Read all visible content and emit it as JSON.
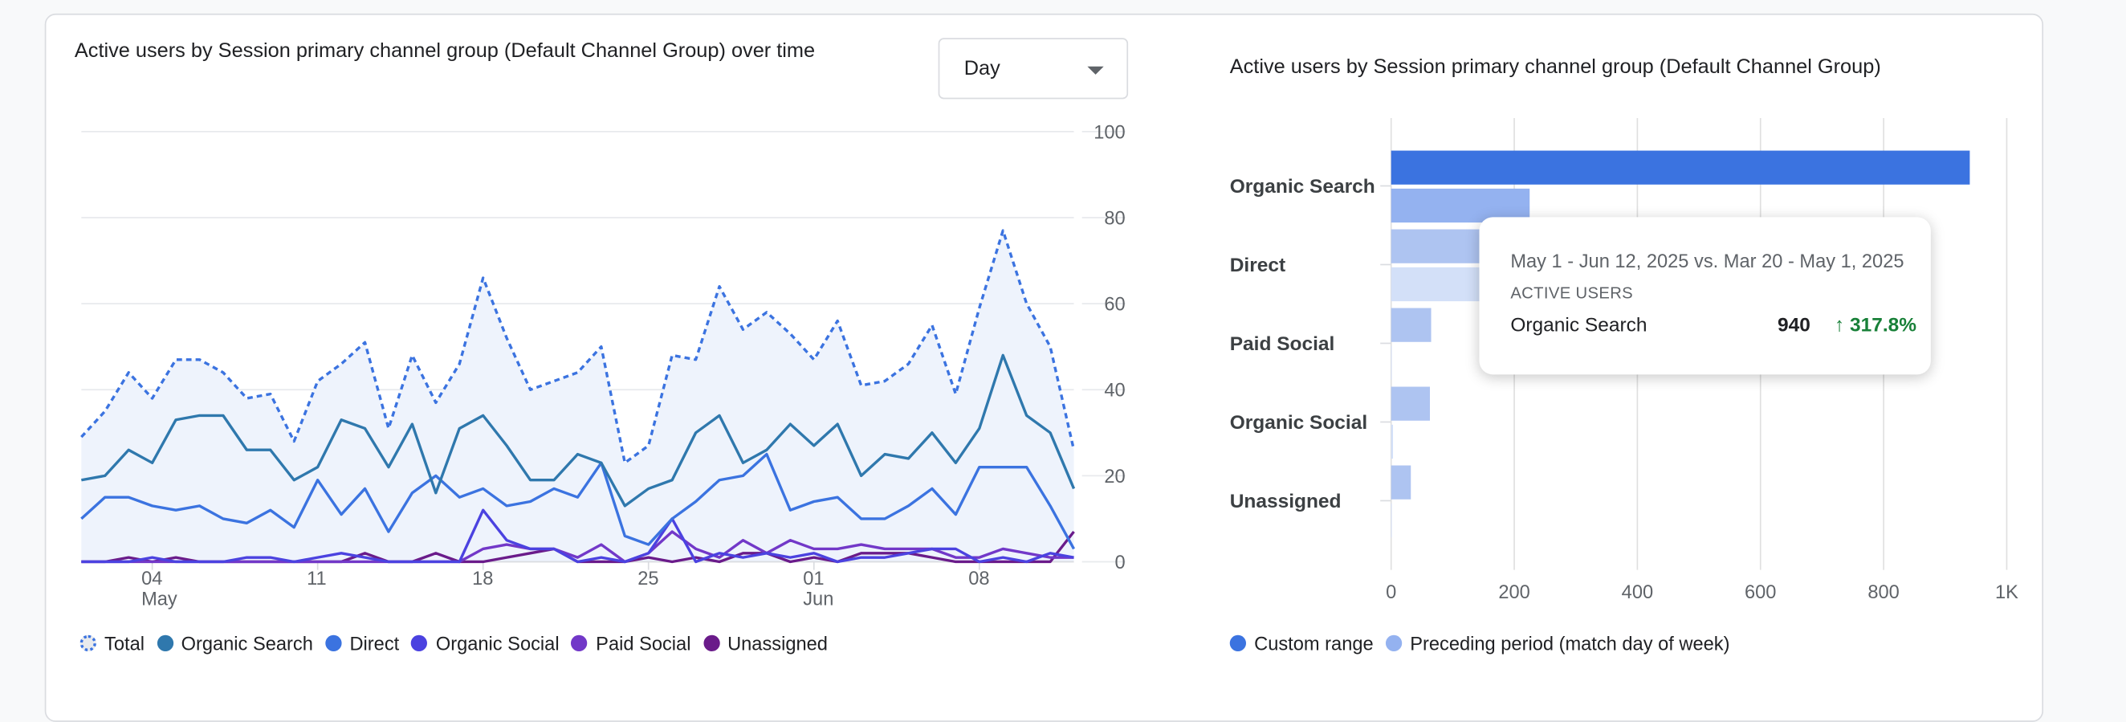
{
  "colors": {
    "total": "#3b73e0",
    "organic_search": "#2f78ad",
    "direct": "#3b73e0",
    "organic_social": "#4b42e0",
    "paid_social": "#7238c8",
    "unassigned": "#6a1b8a",
    "custom_range": "#3b73e0",
    "preceding": "#94b2f0",
    "increase": "#188038"
  },
  "line_panel": {
    "title": "Active users by Session primary channel group (Default Channel Group) over time",
    "granularity": {
      "selected": "Day",
      "icon": "caret-down-icon"
    }
  },
  "bar_panel": {
    "title": "Active users by Session primary channel group (Default Channel Group)"
  },
  "tooltip": {
    "dates": "May 1 - Jun 12, 2025 vs. Mar 20 - May 1, 2025",
    "metric": "ACTIVE USERS",
    "row_label": "Organic Search",
    "value": "940",
    "change": "317.8%",
    "change_icon": "arrow-up-icon"
  },
  "chart_data": [
    {
      "type": "line",
      "title": "Active users by Session primary channel group (Default Channel Group) over time",
      "x_start": "2025-05-01",
      "x_end": "2025-06-12",
      "x_tick_labels": [
        {
          "day": "04",
          "month": "May"
        },
        {
          "day": "11",
          "month": ""
        },
        {
          "day": "18",
          "month": ""
        },
        {
          "day": "25",
          "month": ""
        },
        {
          "day": "01",
          "month": "Jun"
        },
        {
          "day": "08",
          "month": ""
        }
      ],
      "x_tick_dates": [
        "2025-05-04",
        "2025-05-11",
        "2025-05-18",
        "2025-05-25",
        "2025-06-01",
        "2025-06-08"
      ],
      "y_ticks": [
        "0",
        "20",
        "40",
        "60",
        "80",
        "100"
      ],
      "ylim": [
        0,
        100
      ],
      "y_axis_side": "right",
      "grid": true,
      "legend_position": "bottom",
      "series": [
        {
          "name": "Total",
          "style": "dotted-area",
          "values": [
            29,
            35,
            44,
            38,
            47,
            47,
            44,
            38,
            39,
            28,
            42,
            46,
            51,
            31,
            48,
            37,
            46,
            66,
            52,
            40,
            42,
            44,
            50,
            23,
            27,
            48,
            47,
            64,
            54,
            58,
            53,
            47,
            56,
            41,
            42,
            46,
            55,
            39,
            59,
            77,
            60,
            50,
            26
          ]
        },
        {
          "name": "Organic Search",
          "values": [
            19,
            20,
            26,
            23,
            33,
            34,
            34,
            26,
            26,
            19,
            22,
            33,
            31,
            22,
            32,
            16,
            31,
            34,
            27,
            19,
            19,
            25,
            23,
            13,
            17,
            19,
            30,
            34,
            23,
            26,
            32,
            27,
            32,
            20,
            25,
            24,
            30,
            23,
            31,
            48,
            34,
            30,
            17
          ]
        },
        {
          "name": "Direct",
          "values": [
            10,
            15,
            15,
            13,
            12,
            13,
            10,
            9,
            12,
            8,
            19,
            11,
            17,
            7,
            16,
            20,
            15,
            17,
            13,
            14,
            17,
            15,
            23,
            6,
            4,
            10,
            14,
            19,
            20,
            25,
            12,
            14,
            15,
            10,
            10,
            13,
            17,
            11,
            22,
            22,
            22,
            13,
            3
          ]
        },
        {
          "name": "Organic Social",
          "values": [
            0,
            0,
            0,
            1,
            0,
            0,
            0,
            1,
            1,
            0,
            1,
            2,
            1,
            0,
            0,
            0,
            0,
            12,
            5,
            3,
            3,
            0,
            1,
            0,
            2,
            10,
            0,
            2,
            1,
            2,
            1,
            2,
            0,
            1,
            1,
            2,
            3,
            3,
            0,
            1,
            0,
            2,
            1
          ]
        },
        {
          "name": "Paid Social",
          "values": [
            0,
            0,
            0,
            0,
            0,
            0,
            0,
            0,
            0,
            0,
            0,
            0,
            0,
            0,
            0,
            0,
            0,
            3,
            4,
            3,
            3,
            1,
            4,
            0,
            2,
            7,
            3,
            1,
            5,
            2,
            5,
            3,
            3,
            4,
            3,
            3,
            3,
            1,
            1,
            3,
            2,
            1,
            1
          ]
        },
        {
          "name": "Unassigned",
          "values": [
            0,
            0,
            1,
            0,
            1,
            0,
            0,
            0,
            0,
            0,
            0,
            0,
            2,
            0,
            0,
            2,
            0,
            0,
            1,
            2,
            3,
            0,
            0,
            0,
            1,
            0,
            1,
            0,
            2,
            2,
            0,
            1,
            0,
            2,
            2,
            2,
            1,
            0,
            0,
            0,
            0,
            0,
            7
          ]
        }
      ]
    },
    {
      "type": "bar",
      "orientation": "horizontal",
      "title": "Active users by Session primary channel group (Default Channel Group)",
      "categories": [
        "Organic Search",
        "Direct",
        "Paid Social",
        "Organic Social",
        "Unassigned"
      ],
      "x_ticks": [
        "0",
        "200",
        "400",
        "600",
        "800",
        "1K"
      ],
      "xlim": [
        0,
        1000
      ],
      "grid": true,
      "legend_position": "bottom",
      "highlighted_category": "Organic Search",
      "series": [
        {
          "name": "Custom range",
          "values": [
            940,
            340,
            65,
            63,
            32
          ]
        },
        {
          "name": "Preceding period (match day of week)",
          "values": [
            225,
            300,
            0,
            3,
            1
          ]
        }
      ]
    }
  ]
}
